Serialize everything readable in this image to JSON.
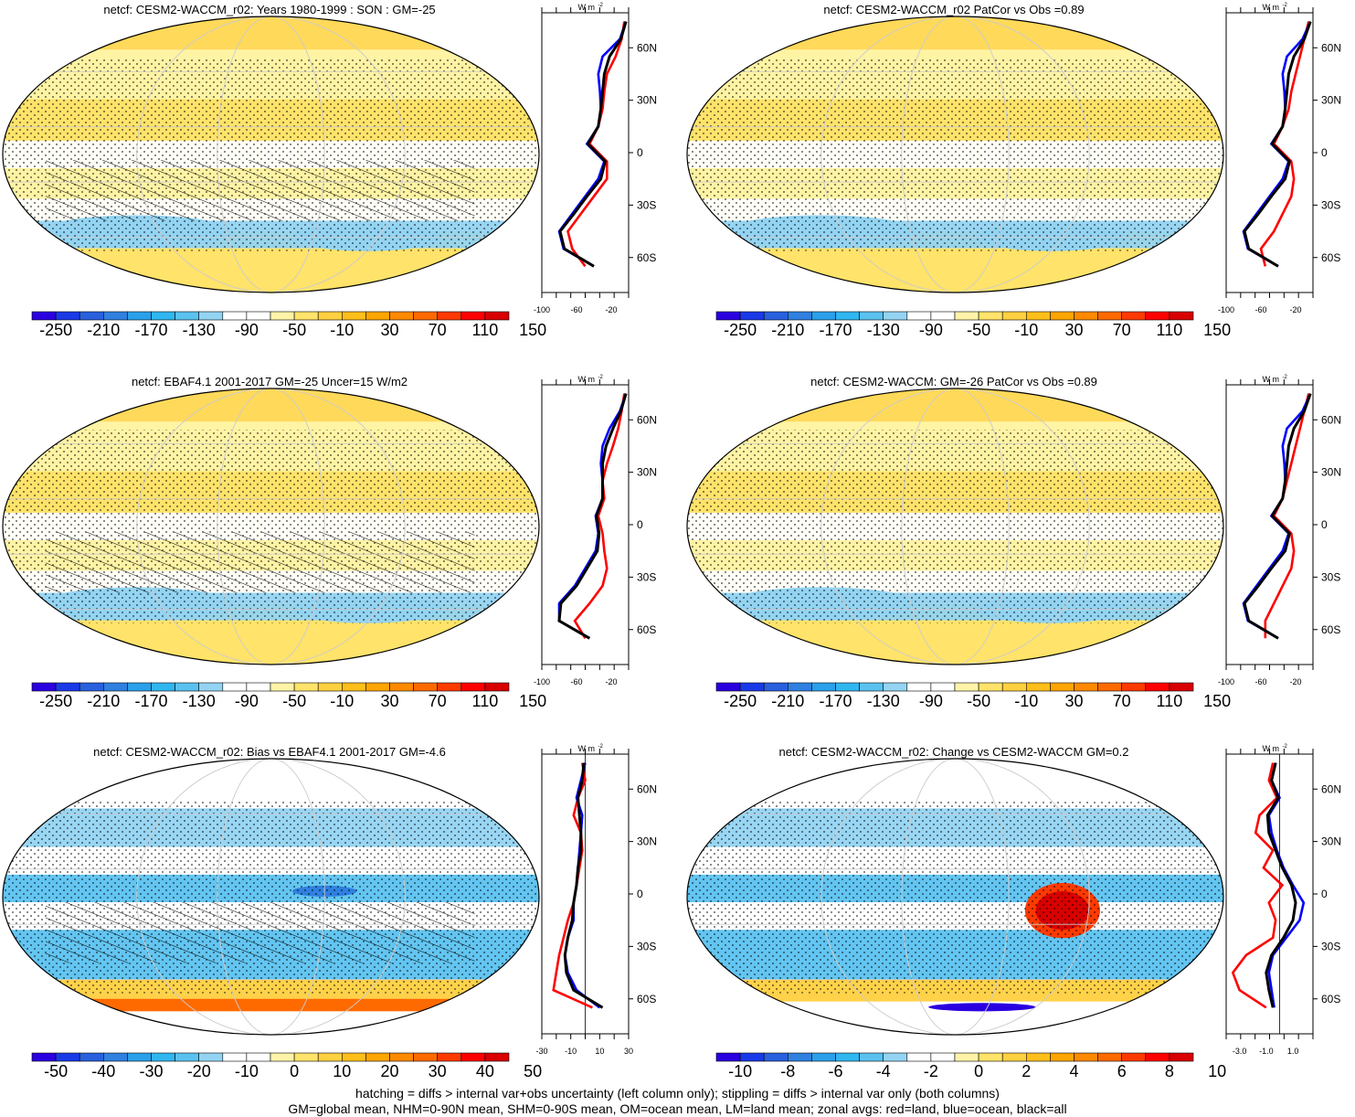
{
  "figure": {
    "footer_line1": "hatching = diffs > internal var+obs uncertainty (left column only); stippling = diffs > internal var only (both columns)",
    "footer_line2": "GM=global mean, NHM=0-90N mean, SHM=0-90S mean, OM=ocean mean, LM=land mean; zonal avgs: red=land, blue=ocean, black=all"
  },
  "colors": {
    "land": "#ff0000",
    "ocean": "#0000ff",
    "all": "#000000",
    "scale_full": [
      "#2b00e0",
      "#1a3ae8",
      "#2860de",
      "#2f80e0",
      "#2aa0ea",
      "#30b6f0",
      "#5bc2f0",
      "#93d4f2",
      "#ffffff",
      "#ffffff",
      "#fff3a8",
      "#ffe36a",
      "#ffd040",
      "#ffbf1a",
      "#ffa500",
      "#ff8a00",
      "#ff6a00",
      "#ff3a00",
      "#ff0000",
      "#d80000"
    ],
    "scale_diff": [
      "#2b00e0",
      "#1a3ae8",
      "#2860de",
      "#2f80e0",
      "#2aa0ea",
      "#30b6f0",
      "#5bc2f0",
      "#93d4f2",
      "#ffffff",
      "#ffffff",
      "#fff3a8",
      "#ffe36a",
      "#ffd040",
      "#ffbf1a",
      "#ffa500",
      "#ff8a00",
      "#ff6a00",
      "#ff3a00",
      "#ff0000",
      "#d80000"
    ]
  },
  "chart_data": [
    {
      "type": "heatmap",
      "id": "p1",
      "title": "netcf: CESM2-WACCM_r02: Years 1980-1999 : SON : GM=-25",
      "colorbar_labels": [
        "-250",
        "-210",
        "-170",
        "-130",
        "-90",
        "-50",
        "-10",
        "30",
        "70",
        "110",
        "150"
      ],
      "zonal": {
        "xlabel_units": "W m",
        "x_ticks": [
          "-100",
          "-60",
          "-20"
        ],
        "y_ticks": [
          "60N",
          "30N",
          "0",
          "30S",
          "60S"
        ],
        "xlim": [
          -100,
          0
        ],
        "lat": [
          75,
          65,
          55,
          45,
          35,
          25,
          15,
          5,
          -5,
          -15,
          -25,
          -35,
          -45,
          -55,
          -65
        ],
        "land": [
          -5,
          -8,
          -15,
          -25,
          -28,
          -30,
          -35,
          -45,
          -25,
          -25,
          -40,
          -55,
          -70,
          -65,
          -50
        ],
        "ocean": [
          -3,
          -10,
          -30,
          -35,
          -33,
          -32,
          -35,
          -48,
          -28,
          -35,
          -50,
          -65,
          -80,
          -75,
          -40
        ],
        "all": [
          -3,
          -9,
          -22,
          -28,
          -30,
          -32,
          -35,
          -47,
          -27,
          -32,
          -48,
          -63,
          -79,
          -74,
          -40
        ]
      }
    },
    {
      "type": "heatmap",
      "id": "p2",
      "title": "netcf: CESM2-WACCM_r02 PatCor vs Obs =0.89",
      "colorbar_labels": [
        "-250",
        "-210",
        "-170",
        "-130",
        "-90",
        "-50",
        "-10",
        "30",
        "70",
        "110",
        "150"
      ],
      "zonal": {
        "xlabel_units": "W m",
        "x_ticks": [
          "-100",
          "-60",
          "-20"
        ],
        "y_ticks": [
          "60N",
          "30N",
          "0",
          "30S",
          "60S"
        ],
        "xlim": [
          -100,
          0
        ],
        "lat": [
          75,
          65,
          55,
          45,
          35,
          25,
          15,
          5,
          -5,
          -15,
          -25,
          -35,
          -45,
          -55,
          -65
        ],
        "land": [
          -5,
          -10,
          -15,
          -20,
          -25,
          -28,
          -35,
          -45,
          -25,
          -22,
          -25,
          -35,
          -45,
          -60,
          -55
        ],
        "ocean": [
          -3,
          -12,
          -30,
          -35,
          -33,
          -32,
          -35,
          -48,
          -28,
          -35,
          -50,
          -65,
          -80,
          -75,
          -40
        ],
        "all": [
          -3,
          -10,
          -22,
          -28,
          -30,
          -32,
          -35,
          -47,
          -27,
          -32,
          -48,
          -63,
          -79,
          -74,
          -40
        ]
      }
    },
    {
      "type": "heatmap",
      "id": "p3",
      "title": "netcf: EBAF4.1 2001-2017 GM=-25 Uncer=15 W/m2",
      "colorbar_labels": [
        "-250",
        "-210",
        "-170",
        "-130",
        "-90",
        "-50",
        "-10",
        "30",
        "70",
        "110",
        "150"
      ],
      "zonal": {
        "xlabel_units": "W m",
        "x_ticks": [
          "-100",
          "-60",
          "-20"
        ],
        "y_ticks": [
          "60N",
          "30N",
          "0",
          "30S",
          "60S"
        ],
        "xlim": [
          -100,
          0
        ],
        "lat": [
          75,
          65,
          55,
          45,
          35,
          25,
          15,
          5,
          -5,
          -15,
          -25,
          -35,
          -45,
          -55,
          -65
        ],
        "land": [
          -5,
          -8,
          -12,
          -18,
          -25,
          -30,
          -28,
          -35,
          -30,
          -28,
          -25,
          -30,
          -45,
          -62,
          -50
        ],
        "ocean": [
          -3,
          -10,
          -22,
          -30,
          -32,
          -30,
          -30,
          -38,
          -35,
          -38,
          -50,
          -62,
          -80,
          -80,
          -45
        ],
        "all": [
          -3,
          -9,
          -18,
          -26,
          -30,
          -30,
          -30,
          -37,
          -34,
          -36,
          -48,
          -60,
          -78,
          -80,
          -45
        ]
      }
    },
    {
      "type": "heatmap",
      "id": "p4",
      "title": "netcf: CESM2-WACCM: GM=-26 PatCor vs Obs =0.89",
      "colorbar_labels": [
        "-250",
        "-210",
        "-170",
        "-130",
        "-90",
        "-50",
        "-10",
        "30",
        "70",
        "110",
        "150"
      ],
      "zonal": {
        "xlabel_units": "W m",
        "x_ticks": [
          "-100",
          "-60",
          "-20"
        ],
        "y_ticks": [
          "60N",
          "30N",
          "0",
          "30S",
          "60S"
        ],
        "xlim": [
          -100,
          0
        ],
        "lat": [
          75,
          65,
          55,
          45,
          35,
          25,
          15,
          5,
          -5,
          -15,
          -25,
          -35,
          -45,
          -55,
          -65
        ],
        "land": [
          -5,
          -10,
          -15,
          -20,
          -25,
          -30,
          -35,
          -45,
          -25,
          -22,
          -25,
          -35,
          -45,
          -55,
          -55
        ],
        "ocean": [
          -3,
          -12,
          -30,
          -35,
          -33,
          -32,
          -35,
          -48,
          -28,
          -35,
          -50,
          -65,
          -80,
          -75,
          -40
        ],
        "all": [
          -3,
          -10,
          -22,
          -28,
          -30,
          -32,
          -35,
          -47,
          -27,
          -32,
          -48,
          -63,
          -79,
          -74,
          -40
        ]
      }
    },
    {
      "type": "heatmap",
      "id": "p5",
      "title": "netcf: CESM2-WACCM_r02: Bias vs EBAF4.1 2001-2017  GM=-4.6",
      "colorbar_labels": [
        "-50",
        "-40",
        "-30",
        "-20",
        "-10",
        "0",
        "10",
        "20",
        "30",
        "40",
        "50"
      ],
      "zonal": {
        "xlabel_units": "W m",
        "x_ticks": [
          "-30",
          "-10",
          "10",
          "30"
        ],
        "y_ticks": [
          "60N",
          "30N",
          "0",
          "30S",
          "60S"
        ],
        "xlim": [
          -30,
          30
        ],
        "lat": [
          75,
          65,
          55,
          45,
          35,
          25,
          15,
          5,
          -5,
          -15,
          -25,
          -35,
          -45,
          -55,
          -65
        ],
        "land": [
          -2,
          0,
          -5,
          -8,
          -3,
          -2,
          -4,
          -6,
          -8,
          -12,
          -15,
          -18,
          -20,
          -22,
          5
        ],
        "ocean": [
          0,
          -3,
          -6,
          -2,
          -3,
          -4,
          -5,
          -6,
          -8,
          -8,
          -12,
          -14,
          -12,
          -6,
          10
        ],
        "all": [
          -1,
          -2,
          -5,
          -4,
          -3,
          -3,
          -5,
          -6,
          -8,
          -9,
          -12,
          -14,
          -13,
          -8,
          12
        ]
      }
    },
    {
      "type": "heatmap",
      "id": "p6",
      "title": "netcf: CESM2-WACCM_r02: Change vs CESM2-WACCM GM=0.2",
      "colorbar_labels": [
        "-10",
        "-8",
        "-6",
        "-4",
        "-2",
        "0",
        "2",
        "4",
        "6",
        "8",
        "10"
      ],
      "zonal": {
        "xlabel_units": "W m",
        "x_ticks": [
          "-3.0",
          "-1.0",
          "1.0"
        ],
        "y_ticks": [
          "60N",
          "30N",
          "0",
          "30S",
          "60S"
        ],
        "xlim": [
          -4,
          2.5
        ],
        "lat": [
          75,
          65,
          55,
          45,
          35,
          25,
          15,
          5,
          -5,
          -15,
          -25,
          -35,
          -45,
          -55,
          -65
        ],
        "land": [
          -0.5,
          -0.8,
          -0.2,
          -1.5,
          -1.8,
          -0.5,
          -1.2,
          0.2,
          -0.8,
          -0.3,
          -0.5,
          -2.5,
          -3.5,
          -3.0,
          -1.0
        ],
        "ocean": [
          -0.3,
          -0.6,
          0.0,
          -0.8,
          -0.6,
          -0.2,
          0.3,
          1.0,
          1.8,
          1.5,
          0.5,
          -0.5,
          -0.8,
          -0.6,
          -0.4
        ],
        "all": [
          -0.3,
          -0.6,
          -0.1,
          -0.9,
          -0.8,
          -0.3,
          0.2,
          0.9,
          1.2,
          1.0,
          0.3,
          -0.6,
          -1.0,
          -0.8,
          -0.5
        ]
      }
    }
  ]
}
